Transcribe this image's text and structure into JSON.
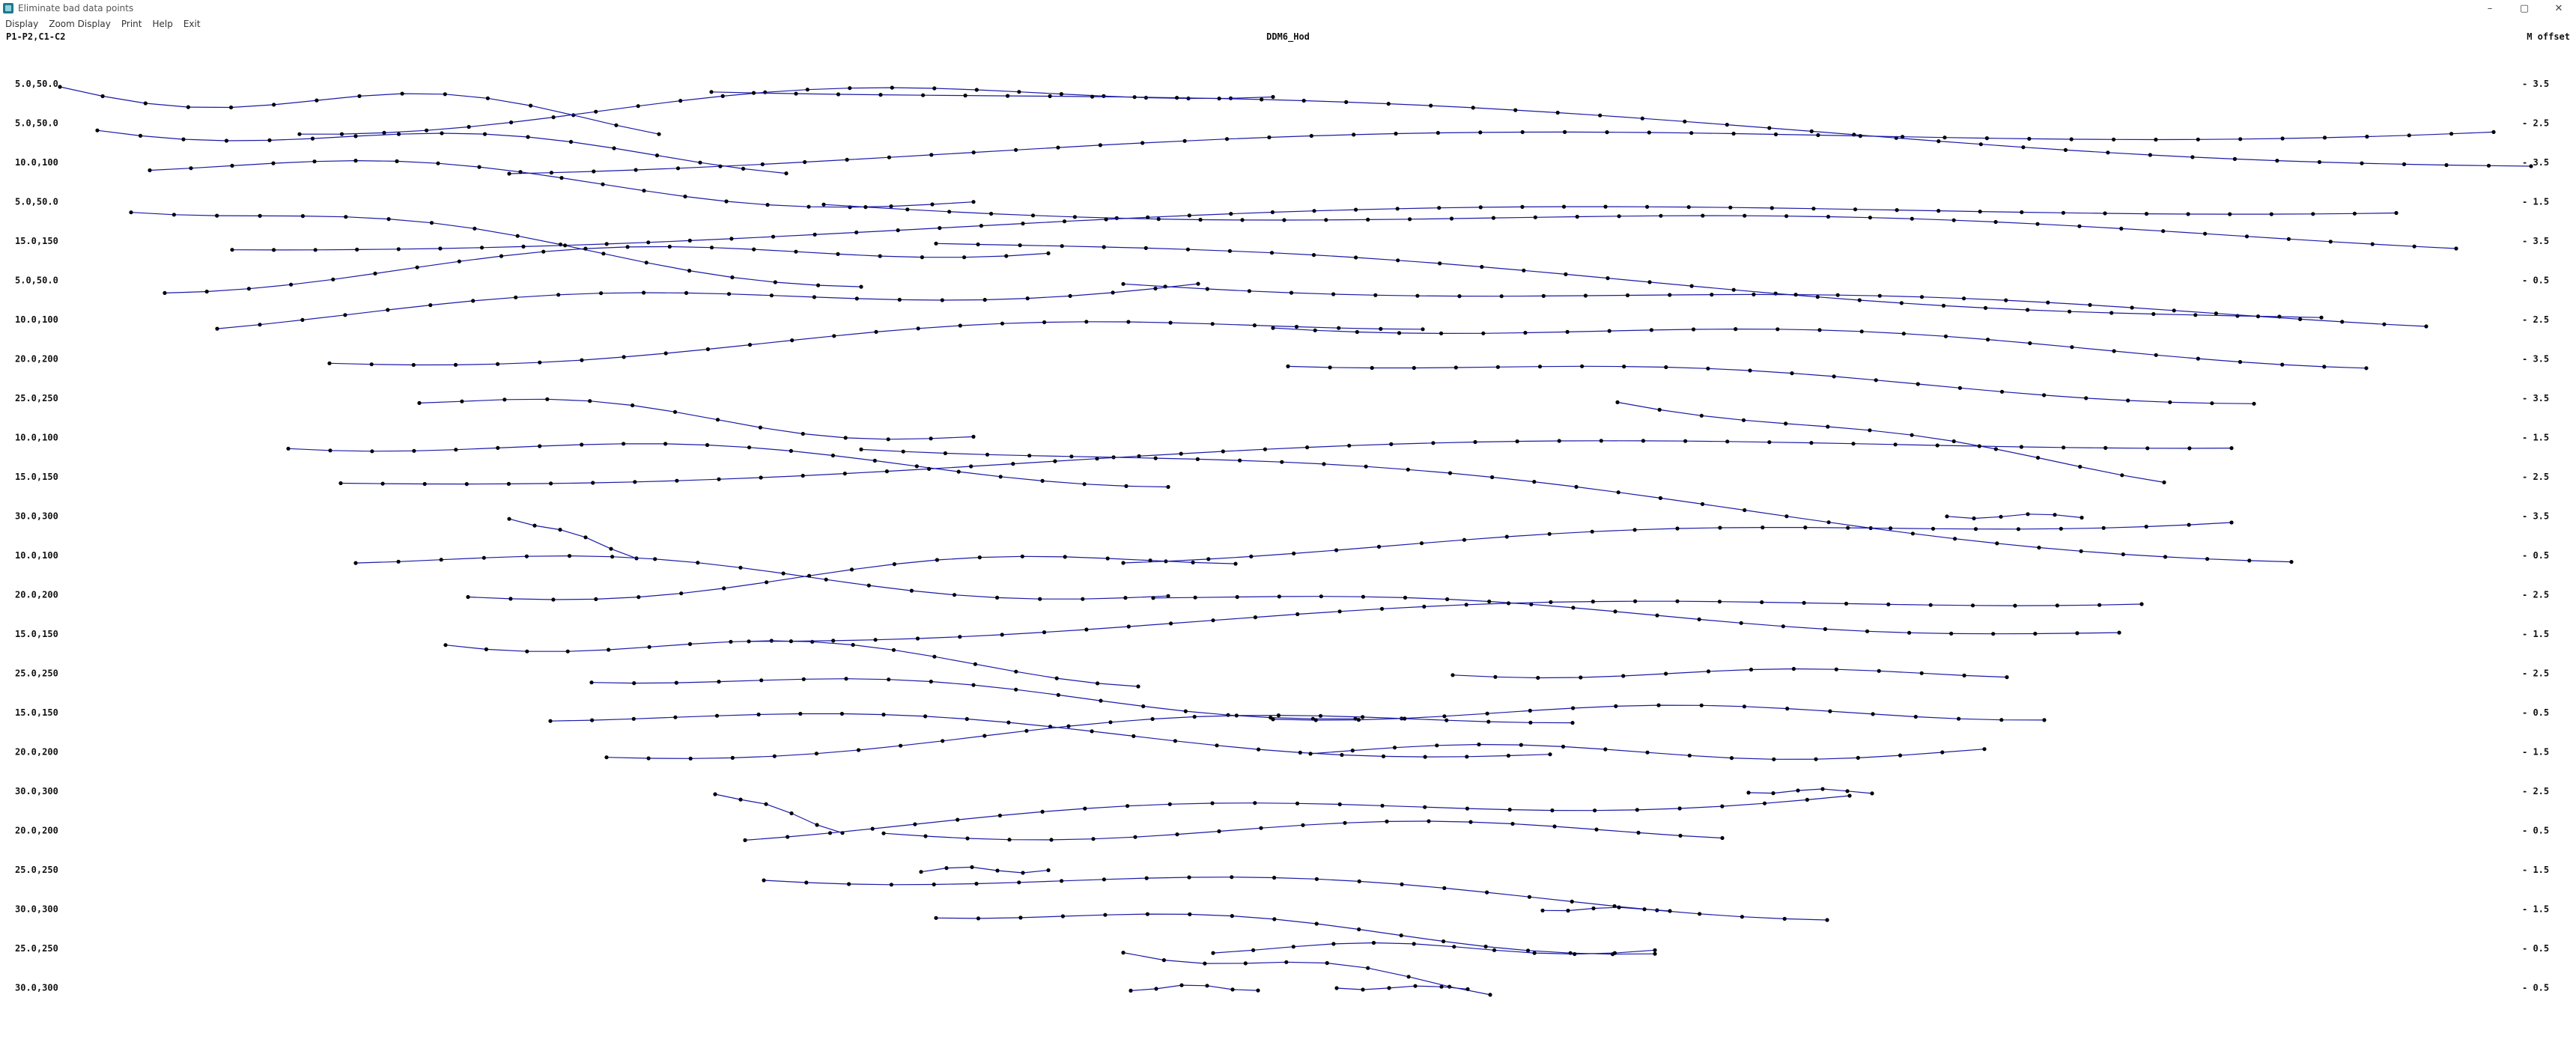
{
  "window": {
    "title": "Eliminate bad data points",
    "icon": "app-chart-icon",
    "controls": {
      "minimize": "–",
      "maximize": "▢",
      "close": "✕"
    }
  },
  "menu": [
    "Display",
    "Zoom Display",
    "Print",
    "Help",
    "Exit"
  ],
  "header": {
    "left_label": "P1-P2,C1-C2",
    "center_title": "DDM6_Hod",
    "right_label": "M offset"
  },
  "chart_data": {
    "type": "line",
    "line_color": "#1a1aa6",
    "marker_color": "#000000",
    "rows": [
      {
        "left": "5.0,50.0",
        "right": "- 3.5"
      },
      {
        "left": "5.0,50.0",
        "right": "- 2.5"
      },
      {
        "left": "10.0,100",
        "right": "- 3.5"
      },
      {
        "left": "5.0,50.0",
        "right": "- 1.5"
      },
      {
        "left": "15.0,150",
        "right": "- 3.5"
      },
      {
        "left": "5.0,50.0",
        "right": "- 0.5"
      },
      {
        "left": "10.0,100",
        "right": "- 2.5"
      },
      {
        "left": "20.0,200",
        "right": "- 3.5"
      },
      {
        "left": "25.0,250",
        "right": "- 3.5"
      },
      {
        "left": "10.0,100",
        "right": "- 1.5"
      },
      {
        "left": "15.0,150",
        "right": "- 2.5"
      },
      {
        "left": "30.0,300",
        "right": "- 3.5"
      },
      {
        "left": "10.0,100",
        "right": "- 0.5"
      },
      {
        "left": "20.0,200",
        "right": "- 2.5"
      },
      {
        "left": "15.0,150",
        "right": "- 1.5"
      },
      {
        "left": "25.0,250",
        "right": "- 2.5"
      },
      {
        "left": "15.0,150",
        "right": "- 0.5"
      },
      {
        "left": "20.0,200",
        "right": "- 1.5"
      },
      {
        "left": "30.0,300",
        "right": "- 2.5"
      },
      {
        "left": "20.0,200",
        "right": "- 0.5"
      },
      {
        "left": "25.0,250",
        "right": "- 1.5"
      },
      {
        "left": "30.0,300",
        "right": "- 1.5"
      },
      {
        "left": "25.0,250",
        "right": "- 0.5"
      },
      {
        "left": "30.0,300",
        "right": "- 0.5"
      }
    ]
  }
}
